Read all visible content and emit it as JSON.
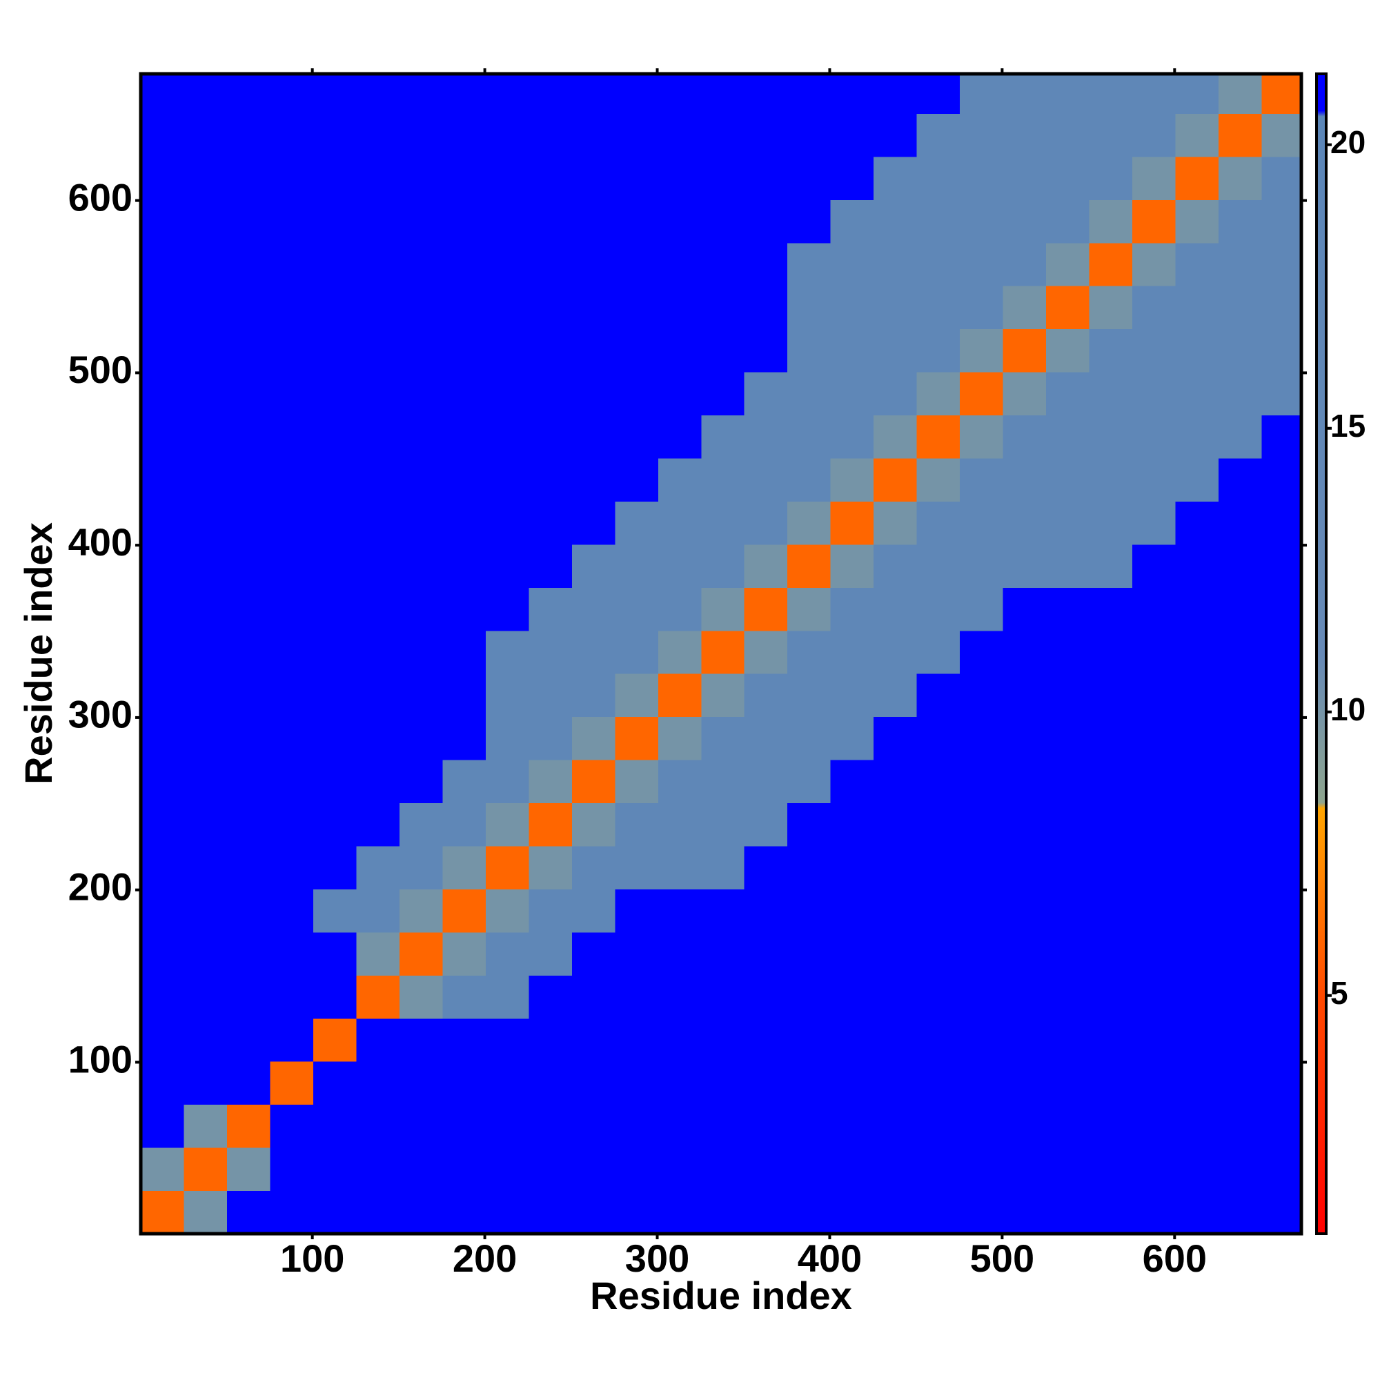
{
  "chart_data": {
    "type": "heatmap",
    "xlabel": "Residue index",
    "ylabel": "Residue index",
    "x_bins": [
      0.5,
      25.5,
      50.5,
      75.5,
      100.5,
      125.5,
      150.5,
      175.5,
      200.5,
      225.5,
      250.5,
      275.5,
      300.5,
      325.5,
      350.5,
      375.5,
      400.5,
      425.5,
      450.5,
      475.5,
      500.5,
      525.5,
      550.5,
      575.5,
      600.5,
      625.5,
      650.5,
      673.5
    ],
    "y_bins": [
      0.5,
      25.5,
      50.5,
      75.5,
      100.5,
      125.5,
      150.5,
      175.5,
      200.5,
      225.5,
      250.5,
      275.5,
      300.5,
      325.5,
      350.5,
      375.5,
      400.5,
      425.5,
      450.5,
      475.5,
      500.5,
      525.5,
      550.5,
      575.5,
      600.5,
      625.5,
      650.5,
      673.5
    ],
    "z": [
      [
        6,
        10,
        21,
        21,
        21,
        21,
        21,
        21,
        21,
        21,
        21,
        21,
        21,
        21,
        21,
        21,
        21,
        21,
        21,
        21,
        21,
        21,
        21,
        21,
        21,
        21,
        21
      ],
      [
        10,
        6,
        10,
        21,
        21,
        21,
        21,
        21,
        21,
        21,
        21,
        21,
        21,
        21,
        21,
        21,
        21,
        21,
        21,
        21,
        21,
        21,
        21,
        21,
        21,
        21,
        21
      ],
      [
        21,
        10,
        6,
        21,
        21,
        21,
        21,
        21,
        21,
        21,
        21,
        21,
        21,
        21,
        21,
        21,
        21,
        21,
        21,
        21,
        21,
        21,
        21,
        21,
        21,
        21,
        21
      ],
      [
        21,
        21,
        21,
        6,
        21,
        21,
        21,
        21,
        21,
        21,
        21,
        21,
        21,
        21,
        21,
        21,
        21,
        21,
        21,
        21,
        21,
        21,
        21,
        21,
        21,
        21,
        21
      ],
      [
        21,
        21,
        21,
        21,
        6,
        21,
        21,
        21,
        21,
        21,
        21,
        21,
        21,
        21,
        21,
        21,
        21,
        21,
        21,
        21,
        21,
        21,
        21,
        21,
        21,
        21,
        21
      ],
      [
        21,
        21,
        21,
        21,
        21,
        6,
        10,
        17,
        17,
        21,
        21,
        21,
        21,
        21,
        21,
        21,
        21,
        21,
        21,
        21,
        21,
        21,
        21,
        21,
        21,
        21,
        21
      ],
      [
        21,
        21,
        21,
        21,
        21,
        10,
        6,
        10,
        17,
        17,
        21,
        21,
        21,
        21,
        21,
        21,
        21,
        21,
        21,
        21,
        21,
        21,
        21,
        21,
        21,
        21,
        21
      ],
      [
        21,
        21,
        21,
        21,
        17,
        17,
        10,
        6,
        10,
        17,
        17,
        21,
        21,
        21,
        21,
        21,
        21,
        21,
        21,
        21,
        21,
        21,
        21,
        21,
        21,
        21,
        21
      ],
      [
        21,
        21,
        21,
        21,
        21,
        17,
        17,
        10,
        6,
        10,
        17,
        17,
        17,
        17,
        21,
        21,
        21,
        21,
        21,
        21,
        21,
        21,
        21,
        21,
        21,
        21,
        21
      ],
      [
        21,
        21,
        21,
        21,
        21,
        21,
        17,
        17,
        10,
        6,
        10,
        17,
        17,
        17,
        17,
        21,
        21,
        21,
        21,
        21,
        21,
        21,
        21,
        21,
        21,
        21,
        21
      ],
      [
        21,
        21,
        21,
        21,
        21,
        21,
        21,
        17,
        17,
        10,
        6,
        10,
        17,
        17,
        17,
        17,
        21,
        21,
        21,
        21,
        21,
        21,
        21,
        21,
        21,
        21,
        21
      ],
      [
        21,
        21,
        21,
        21,
        21,
        21,
        21,
        21,
        17,
        17,
        10,
        6,
        10,
        17,
        17,
        17,
        17,
        21,
        21,
        21,
        21,
        21,
        21,
        21,
        21,
        21,
        21
      ],
      [
        21,
        21,
        21,
        21,
        21,
        21,
        21,
        21,
        17,
        17,
        17,
        10,
        6,
        10,
        17,
        17,
        17,
        17,
        21,
        21,
        21,
        21,
        21,
        21,
        21,
        21,
        21
      ],
      [
        21,
        21,
        21,
        21,
        21,
        21,
        21,
        21,
        17,
        17,
        17,
        17,
        10,
        6,
        10,
        17,
        17,
        17,
        17,
        21,
        21,
        21,
        21,
        21,
        21,
        21,
        21
      ],
      [
        21,
        21,
        21,
        21,
        21,
        21,
        21,
        21,
        21,
        17,
        17,
        17,
        17,
        10,
        6,
        10,
        17,
        17,
        17,
        17,
        21,
        21,
        21,
        21,
        21,
        21,
        21
      ],
      [
        21,
        21,
        21,
        21,
        21,
        21,
        21,
        21,
        21,
        21,
        17,
        17,
        17,
        17,
        10,
        6,
        10,
        17,
        17,
        17,
        17,
        17,
        17,
        21,
        21,
        21,
        21
      ],
      [
        21,
        21,
        21,
        21,
        21,
        21,
        21,
        21,
        21,
        21,
        21,
        17,
        17,
        17,
        17,
        10,
        6,
        10,
        17,
        17,
        17,
        17,
        17,
        17,
        21,
        21,
        21
      ],
      [
        21,
        21,
        21,
        21,
        21,
        21,
        21,
        21,
        21,
        21,
        21,
        21,
        17,
        17,
        17,
        17,
        10,
        6,
        10,
        17,
        17,
        17,
        17,
        17,
        17,
        21,
        21
      ],
      [
        21,
        21,
        21,
        21,
        21,
        21,
        21,
        21,
        21,
        21,
        21,
        21,
        21,
        17,
        17,
        17,
        17,
        10,
        6,
        10,
        17,
        17,
        17,
        17,
        17,
        17,
        21
      ],
      [
        21,
        21,
        21,
        21,
        21,
        21,
        21,
        21,
        21,
        21,
        21,
        21,
        21,
        21,
        17,
        17,
        17,
        17,
        10,
        6,
        10,
        17,
        17,
        17,
        17,
        17,
        17
      ],
      [
        21,
        21,
        21,
        21,
        21,
        21,
        21,
        21,
        21,
        21,
        21,
        21,
        21,
        21,
        21,
        17,
        17,
        17,
        17,
        10,
        6,
        10,
        17,
        17,
        17,
        17,
        17
      ],
      [
        21,
        21,
        21,
        21,
        21,
        21,
        21,
        21,
        21,
        21,
        21,
        21,
        21,
        21,
        21,
        17,
        17,
        17,
        17,
        17,
        10,
        6,
        10,
        17,
        17,
        17,
        17
      ],
      [
        21,
        21,
        21,
        21,
        21,
        21,
        21,
        21,
        21,
        21,
        21,
        21,
        21,
        21,
        21,
        17,
        17,
        17,
        17,
        17,
        17,
        10,
        6,
        10,
        17,
        17,
        17
      ],
      [
        21,
        21,
        21,
        21,
        21,
        21,
        21,
        21,
        21,
        21,
        21,
        21,
        21,
        21,
        21,
        21,
        17,
        17,
        17,
        17,
        17,
        17,
        10,
        6,
        10,
        17,
        17
      ],
      [
        21,
        21,
        21,
        21,
        21,
        21,
        21,
        21,
        21,
        21,
        21,
        21,
        21,
        21,
        21,
        21,
        21,
        17,
        17,
        17,
        17,
        17,
        17,
        10,
        6,
        10,
        17
      ],
      [
        21,
        21,
        21,
        21,
        21,
        21,
        21,
        21,
        21,
        21,
        21,
        21,
        21,
        21,
        21,
        21,
        21,
        21,
        17,
        17,
        17,
        17,
        17,
        17,
        10,
        6,
        10
      ],
      [
        21,
        21,
        21,
        21,
        21,
        21,
        21,
        21,
        21,
        21,
        21,
        21,
        21,
        21,
        21,
        21,
        21,
        21,
        21,
        17,
        17,
        17,
        17,
        17,
        17,
        10,
        6
      ]
    ],
    "xlim": [
      0.5,
      673.5
    ],
    "ylim": [
      0.5,
      673.5
    ],
    "xticks": [
      100,
      200,
      300,
      400,
      500,
      600
    ],
    "yticks": [
      100,
      200,
      300,
      400,
      500,
      600
    ],
    "colorbar": {
      "lim": [
        0.8,
        21.25
      ],
      "ticks": [
        5,
        10,
        15,
        20
      ]
    },
    "colorscale": [
      [
        0.8,
        "#ff0000"
      ],
      [
        5,
        "#ff4a00"
      ],
      [
        8.3,
        "#ffa500"
      ],
      [
        8.4,
        "#8ea58e"
      ],
      [
        11,
        "#6689b6"
      ],
      [
        20.5,
        "#5b86b8"
      ],
      [
        20.6,
        "#0000ff"
      ],
      [
        21.25,
        "#0000ff"
      ]
    ]
  }
}
